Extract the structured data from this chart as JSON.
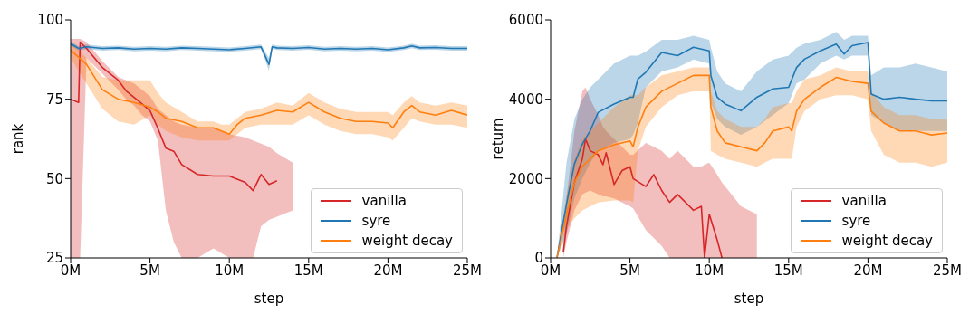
{
  "chart_data": [
    {
      "type": "line",
      "xlabel": "step",
      "ylabel": "rank",
      "xlim": [
        0,
        25
      ],
      "ylim": [
        25,
        100
      ],
      "xticks": [
        {
          "value": 0,
          "label": "0M"
        },
        {
          "value": 5,
          "label": "5M"
        },
        {
          "value": 10,
          "label": "10M"
        },
        {
          "value": 15,
          "label": "15M"
        },
        {
          "value": 20,
          "label": "20M"
        },
        {
          "value": 25,
          "label": "25M"
        }
      ],
      "yticks": [
        25,
        50,
        75,
        100
      ],
      "legend": "bottom right",
      "marker": "none",
      "series": [
        {
          "name": "vanilla",
          "color": "#d62728",
          "x": [
            0,
            0.5,
            0.6,
            1,
            2,
            3,
            3.5,
            4,
            4.5,
            5,
            5.5,
            6,
            6.5,
            7,
            8,
            9,
            10,
            11,
            11.5,
            12,
            12.5,
            13,
            14
          ],
          "values": [
            75,
            74,
            93,
            91,
            85,
            81,
            77.6,
            75.6,
            73.5,
            71.4,
            65.8,
            59.6,
            58.6,
            54.4,
            51.3,
            50.8,
            50.8,
            48.8,
            46.2,
            51.3,
            48.2,
            49.3,
            null
          ],
          "lower": [
            25,
            25,
            25,
            88,
            83,
            78,
            75,
            73,
            70,
            68,
            62,
            40,
            30,
            25,
            25,
            28,
            25,
            25,
            25,
            35,
            37,
            38,
            40
          ],
          "upper": [
            94,
            94,
            94,
            93,
            87,
            82,
            81,
            80,
            78,
            76,
            72,
            70,
            68,
            67,
            66,
            66,
            64,
            63,
            62,
            61,
            60,
            58,
            55
          ]
        },
        {
          "name": "syre",
          "color": "#1f77b4",
          "x": [
            0,
            0.5,
            1,
            2,
            3,
            4,
            5,
            6,
            7,
            8,
            9,
            10,
            11,
            12,
            12.5,
            12.7,
            13,
            14,
            15,
            16,
            17,
            18,
            19,
            20,
            21,
            21.5,
            22,
            23,
            24,
            25
          ],
          "values": [
            92.5,
            91,
            91.5,
            91,
            91.2,
            90.8,
            91,
            90.8,
            91.2,
            91,
            90.8,
            90.6,
            91,
            91.5,
            86,
            91.5,
            91.2,
            91,
            91.3,
            90.8,
            91,
            90.8,
            91,
            90.6,
            91.2,
            91.8,
            91.2,
            91.3,
            91,
            91
          ],
          "lower": [
            91.8,
            90.3,
            90.8,
            90.3,
            90.5,
            90.1,
            90.3,
            90.1,
            90.5,
            90.3,
            90.1,
            89.9,
            90.3,
            90.8,
            84,
            90.8,
            90.5,
            90.3,
            90.6,
            90.1,
            90.3,
            90.1,
            90.3,
            89.9,
            90.5,
            91.1,
            90.5,
            90.6,
            90.3,
            90.3
          ],
          "upper": [
            93.2,
            91.7,
            92.2,
            91.7,
            91.9,
            91.5,
            91.7,
            91.5,
            91.9,
            91.7,
            91.5,
            91.3,
            91.7,
            92.2,
            88,
            92.2,
            91.9,
            91.7,
            92,
            91.5,
            91.7,
            91.5,
            91.7,
            91.3,
            91.9,
            92.5,
            91.9,
            92,
            91.7,
            91.7
          ]
        },
        {
          "name": "weight decay",
          "color": "#ff7f0e",
          "x": [
            0,
            1,
            2,
            3,
            4,
            5,
            5.5,
            6,
            7,
            8,
            9,
            9.5,
            10,
            10.5,
            11,
            12,
            13,
            14,
            15,
            16,
            17,
            18,
            19,
            20,
            20.3,
            21,
            21.5,
            22,
            23,
            24,
            25
          ],
          "values": [
            90.5,
            86,
            78,
            75,
            74,
            72.5,
            71,
            69,
            68,
            66,
            66,
            65,
            64,
            67,
            69,
            70,
            71.5,
            71,
            74,
            71,
            69,
            68,
            68,
            67.5,
            66,
            71,
            73,
            71,
            70,
            71.5,
            70
          ],
          "lower": [
            88,
            80,
            72,
            68,
            67,
            70,
            67,
            65,
            63,
            62,
            62,
            62,
            62,
            64,
            66,
            67,
            67,
            67,
            70,
            67,
            65,
            64,
            64,
            63,
            62,
            66,
            69,
            68,
            67,
            67,
            66
          ],
          "upper": [
            93,
            88,
            82,
            81,
            81,
            81,
            77,
            74,
            71,
            68,
            68,
            67,
            67,
            69,
            71,
            72,
            74,
            73,
            77,
            74,
            72,
            71,
            71,
            71,
            70,
            74,
            76,
            74,
            73,
            74,
            73
          ]
        }
      ]
    },
    {
      "type": "line",
      "xlabel": "step",
      "ylabel": "return",
      "xlim": [
        0,
        25
      ],
      "ylim": [
        0,
        6000
      ],
      "xticks": [
        {
          "value": 0,
          "label": "0M"
        },
        {
          "value": 5,
          "label": "5M"
        },
        {
          "value": 10,
          "label": "10M"
        },
        {
          "value": 15,
          "label": "15M"
        },
        {
          "value": 20,
          "label": "20M"
        },
        {
          "value": 25,
          "label": "25M"
        }
      ],
      "yticks": [
        0,
        2000,
        4000,
        6000
      ],
      "legend": "bottom right",
      "marker": "none",
      "series": [
        {
          "name": "vanilla",
          "color": "#d62728",
          "x": [
            0.8,
            1,
            1.5,
            2,
            2.2,
            2.5,
            3,
            3.3,
            3.5,
            4,
            4.5,
            5,
            5.2,
            6,
            6.5,
            7,
            7.5,
            8,
            9,
            9.5,
            9.7,
            10,
            10.5,
            10.8,
            11,
            12,
            13
          ],
          "values": [
            150,
            800,
            1900,
            2500,
            3000,
            2700,
            2600,
            2350,
            2650,
            1850,
            2200,
            2300,
            2000,
            1800,
            2100,
            1700,
            1400,
            1600,
            1200,
            1300,
            0,
            1100,
            450,
            0,
            null,
            null,
            null
          ],
          "lower": [
            0,
            400,
            1200,
            1600,
            1650,
            1700,
            1600,
            1550,
            1550,
            1500,
            1400,
            1300,
            1250,
            700,
            500,
            300,
            0,
            0,
            0,
            0,
            0,
            0,
            0,
            0,
            0,
            0,
            0
          ],
          "upper": [
            300,
            1500,
            3200,
            4200,
            4300,
            4000,
            3600,
            3300,
            3200,
            3000,
            2800,
            2600,
            2600,
            2900,
            2800,
            2700,
            2500,
            2700,
            2300,
            2300,
            2350,
            2400,
            2100,
            1900,
            1800,
            1300,
            1100
          ]
        },
        {
          "name": "syre",
          "color": "#1f77b4",
          "x": [
            0.4,
            1,
            1.5,
            2,
            2.5,
            3,
            4,
            5,
            5.2,
            5.5,
            6,
            7,
            8,
            9,
            10,
            10.1,
            10.5,
            11,
            12,
            13,
            14,
            15,
            15.5,
            16,
            17,
            18,
            18.5,
            19,
            20,
            20.2,
            21,
            22,
            23,
            24,
            25
          ],
          "values": [
            0,
            1360,
            2370,
            2870,
            3210,
            3670,
            3880,
            4050,
            4050,
            4510,
            4680,
            5180,
            5100,
            5310,
            5220,
            4590,
            4050,
            3880,
            3710,
            4050,
            4260,
            4300,
            4800,
            5010,
            5220,
            5390,
            5140,
            5350,
            5430,
            4130,
            4000,
            4050,
            4000,
            3960,
            3960
          ],
          "lower": [
            0,
            600,
            1500,
            2000,
            2400,
            2700,
            2900,
            3000,
            3100,
            3400,
            4300,
            4700,
            4800,
            5000,
            4900,
            3900,
            3500,
            3300,
            3100,
            3300,
            3600,
            3900,
            4400,
            4500,
            4900,
            5100,
            5000,
            5100,
            5100,
            3600,
            3400,
            3200,
            3200,
            3200,
            3200
          ],
          "upper": [
            0,
            2400,
            3500,
            4000,
            4300,
            4500,
            4900,
            5100,
            5100,
            5100,
            5200,
            5500,
            5500,
            5600,
            5500,
            5300,
            4700,
            4400,
            4200,
            4700,
            5000,
            5100,
            5300,
            5400,
            5500,
            5700,
            5500,
            5600,
            5600,
            4600,
            4800,
            4800,
            4900,
            4800,
            4700
          ]
        },
        {
          "name": "weight decay",
          "color": "#ff7f0e",
          "x": [
            0.4,
            1,
            1.5,
            2,
            3,
            4,
            5,
            5.2,
            5.5,
            6,
            7,
            8,
            9,
            10,
            10.1,
            10.5,
            11,
            12,
            13,
            13.5,
            14,
            15,
            15.2,
            15.5,
            16,
            17,
            18,
            19,
            20,
            20.2,
            21,
            22,
            23,
            24,
            25
          ],
          "values": [
            0,
            1100,
            1900,
            2300,
            2700,
            2850,
            2950,
            2800,
            3300,
            3800,
            4200,
            4400,
            4600,
            4600,
            3800,
            3200,
            2900,
            2800,
            2700,
            2900,
            3200,
            3300,
            3200,
            3700,
            4000,
            4300,
            4550,
            4450,
            4400,
            3700,
            3400,
            3200,
            3200,
            3100,
            3150
          ],
          "lower": [
            0,
            700,
            1000,
            1200,
            1400,
            1450,
            1450,
            1400,
            2700,
            3300,
            3800,
            4100,
            4200,
            4200,
            2700,
            2600,
            2500,
            2400,
            2300,
            2400,
            2500,
            2500,
            2500,
            3300,
            3700,
            4000,
            4100,
            4100,
            4000,
            3200,
            2600,
            2400,
            2400,
            2300,
            2400
          ],
          "upper": [
            0,
            1600,
            2500,
            3000,
            3400,
            3800,
            4100,
            4100,
            4100,
            4300,
            4600,
            4700,
            4800,
            4800,
            4200,
            3700,
            3500,
            3300,
            3300,
            3500,
            3800,
            3900,
            3900,
            4200,
            4500,
            4600,
            4800,
            4700,
            4700,
            4200,
            3800,
            3600,
            3600,
            3500,
            3500
          ]
        }
      ]
    }
  ]
}
